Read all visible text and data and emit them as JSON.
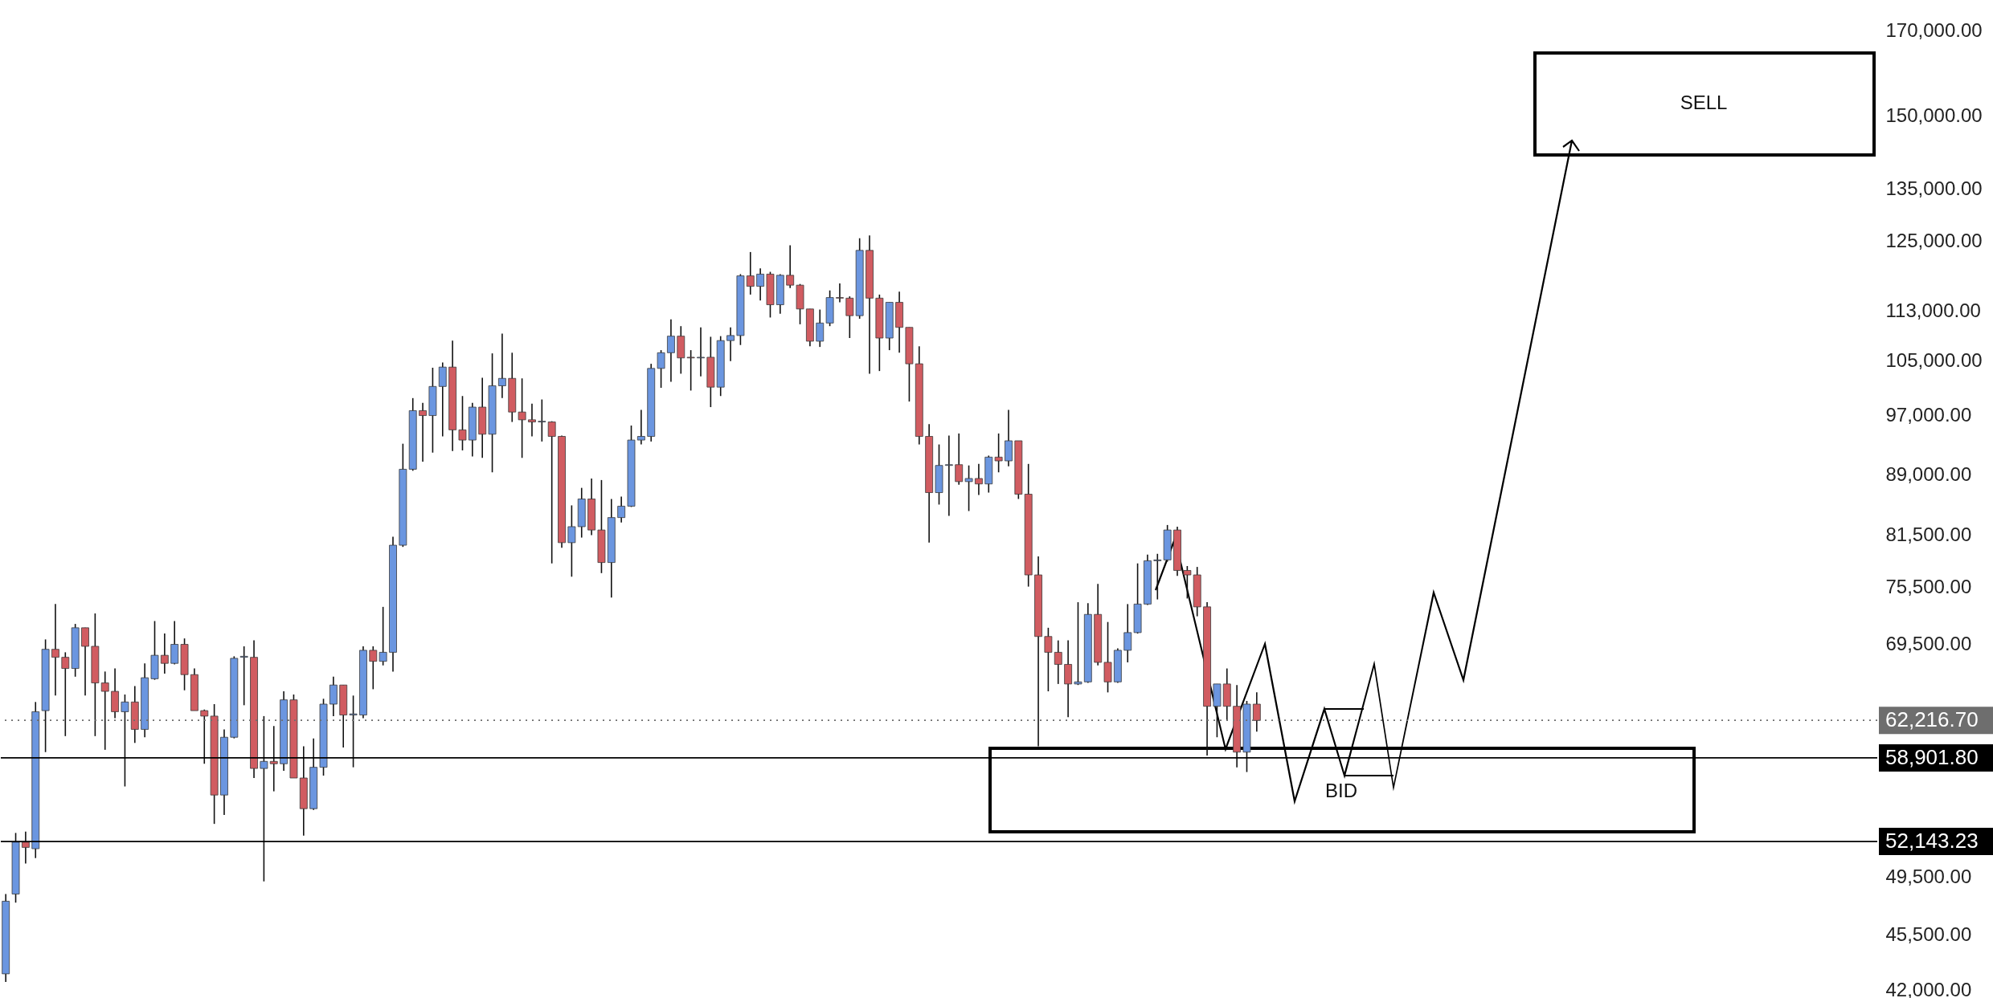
{
  "chart_data": {
    "type": "candlestick",
    "categories": [
      null,
      null,
      null,
      null,
      null,
      null,
      null,
      null,
      null,
      null,
      null,
      null,
      null,
      null,
      null,
      null,
      null,
      null,
      null,
      null,
      null,
      null,
      null,
      null,
      null,
      null,
      null,
      null,
      null,
      null,
      null,
      null,
      null,
      null,
      null,
      null,
      null,
      null,
      null,
      null,
      null,
      null,
      null,
      null,
      null,
      null,
      null,
      null,
      null,
      null,
      null,
      null,
      null,
      null,
      null,
      null,
      null,
      null,
      null,
      null,
      null,
      null,
      null,
      null,
      null,
      null,
      null,
      null,
      null,
      null,
      null,
      null,
      null,
      null,
      null,
      null,
      null,
      null,
      null,
      null,
      null,
      null,
      null,
      null,
      null,
      null,
      null,
      null,
      null,
      null,
      null,
      null,
      null,
      null,
      null,
      null,
      null,
      null,
      null,
      null,
      null,
      null,
      null,
      null,
      null,
      null,
      null,
      null,
      null,
      null,
      null,
      null,
      null,
      null,
      null,
      null,
      null,
      null,
      null,
      null,
      null,
      null,
      null,
      null,
      null,
      null,
      null,
      null,
      null,
      null,
      null,
      null,
      null,
      null,
      null,
      null,
      null,
      null,
      null,
      null,
      null,
      null,
      null,
      null,
      null,
      null,
      null,
      null,
      null,
      null,
      null,
      null,
      null,
      null,
      null,
      null,
      null,
      null,
      null,
      null,
      null,
      null,
      null,
      null,
      null,
      null,
      null,
      null,
      null,
      null,
      null,
      null,
      null,
      null,
      null,
      null,
      null,
      null,
      null,
      null,
      null,
      null,
      null,
      null,
      null,
      null,
      null,
      null,
      null
    ],
    "ohlc": [
      [
        43000,
        48300,
        42500,
        47800
      ],
      [
        48300,
        52800,
        47700,
        52100
      ],
      [
        52100,
        52900,
        50500,
        51700
      ],
      [
        51600,
        63900,
        50900,
        63000
      ],
      [
        63100,
        70000,
        59400,
        69000
      ],
      [
        69000,
        73700,
        64500,
        68200
      ],
      [
        68200,
        68700,
        60800,
        67100
      ],
      [
        67100,
        71600,
        66300,
        71200
      ],
      [
        71200,
        71200,
        64500,
        69300
      ],
      [
        69300,
        72700,
        60800,
        65700
      ],
      [
        65700,
        66800,
        59600,
        64900
      ],
      [
        64900,
        67100,
        62400,
        63000
      ],
      [
        63000,
        64600,
        56500,
        63900
      ],
      [
        63900,
        65400,
        60200,
        61400
      ],
      [
        61400,
        67600,
        60700,
        66200
      ],
      [
        66100,
        71900,
        66000,
        68400
      ],
      [
        68400,
        70600,
        66600,
        67600
      ],
      [
        67600,
        71900,
        67500,
        69500
      ],
      [
        69500,
        70100,
        65000,
        66500
      ],
      [
        66500,
        67100,
        63100,
        63100
      ],
      [
        63100,
        63200,
        58400,
        62600
      ],
      [
        62600,
        63700,
        53500,
        55800
      ],
      [
        55800,
        61400,
        54200,
        60700
      ],
      [
        60700,
        68300,
        60600,
        68100
      ],
      [
        68200,
        69300,
        63600,
        68300
      ],
      [
        68200,
        69900,
        57200,
        58000
      ],
      [
        58000,
        62600,
        49200,
        58600
      ],
      [
        58600,
        61700,
        56100,
        58400
      ],
      [
        58400,
        64900,
        57800,
        64100
      ],
      [
        64100,
        64600,
        57200,
        57200
      ],
      [
        57200,
        59900,
        52600,
        54700
      ],
      [
        54700,
        60600,
        54600,
        58100
      ],
      [
        58100,
        64200,
        57400,
        63700
      ],
      [
        63700,
        66300,
        62600,
        65500
      ],
      [
        65500,
        65500,
        59800,
        62700
      ],
      [
        62700,
        64500,
        58100,
        62800
      ],
      [
        62700,
        69300,
        62400,
        68900
      ],
      [
        68900,
        69300,
        65100,
        67800
      ],
      [
        67800,
        73400,
        67400,
        68700
      ],
      [
        68700,
        81300,
        66800,
        80300
      ],
      [
        80300,
        93100,
        80100,
        89700
      ],
      [
        89700,
        99500,
        89500,
        97700
      ],
      [
        97700,
        98800,
        90700,
        97000
      ],
      [
        97000,
        104000,
        91900,
        101200
      ],
      [
        101200,
        104800,
        94100,
        104100
      ],
      [
        104100,
        108200,
        92100,
        95000
      ],
      [
        95000,
        99800,
        92200,
        93600
      ],
      [
        93600,
        98800,
        91400,
        98200
      ],
      [
        98200,
        102500,
        91200,
        94400
      ],
      [
        94400,
        106200,
        89300,
        101300
      ],
      [
        101300,
        109300,
        99500,
        102400
      ],
      [
        102400,
        106300,
        96100,
        97500
      ],
      [
        97500,
        102400,
        91200,
        96400
      ],
      [
        96400,
        98700,
        94100,
        96100
      ],
      [
        96100,
        99300,
        93400,
        96200
      ],
      [
        96100,
        96200,
        78200,
        94100
      ],
      [
        94100,
        94200,
        80000,
        80600
      ],
      [
        80600,
        85100,
        76700,
        82500
      ],
      [
        82500,
        87300,
        81200,
        85900
      ],
      [
        85900,
        88500,
        81500,
        82100
      ],
      [
        82100,
        88300,
        77100,
        78300
      ],
      [
        78300,
        85900,
        74400,
        83600
      ],
      [
        83600,
        86200,
        83000,
        85000
      ],
      [
        85000,
        95600,
        84900,
        93600
      ],
      [
        93600,
        97800,
        93000,
        94100
      ],
      [
        94100,
        104600,
        93400,
        103900
      ],
      [
        103900,
        106700,
        101000,
        106300
      ],
      [
        106300,
        111600,
        101900,
        108900
      ],
      [
        108900,
        110500,
        103100,
        105500
      ],
      [
        105600,
        106700,
        100600,
        105500
      ],
      [
        105500,
        110300,
        102700,
        105600
      ],
      [
        105600,
        108800,
        98200,
        101100
      ],
      [
        101100,
        108900,
        99800,
        108200
      ],
      [
        108200,
        110300,
        105000,
        109000
      ],
      [
        109000,
        119200,
        107500,
        118900
      ],
      [
        118900,
        123100,
        115700,
        117100
      ],
      [
        117100,
        120200,
        114700,
        119200
      ],
      [
        119200,
        119600,
        111900,
        114000
      ],
      [
        114000,
        119200,
        112500,
        119000
      ],
      [
        119000,
        124300,
        116800,
        117300
      ],
      [
        117300,
        117500,
        110800,
        113300
      ],
      [
        113300,
        113300,
        107300,
        108100
      ],
      [
        108100,
        113200,
        107200,
        111000
      ],
      [
        111000,
        116400,
        110500,
        115200
      ],
      [
        115200,
        117600,
        114400,
        115100
      ],
      [
        115100,
        115400,
        108600,
        112200
      ],
      [
        112200,
        125600,
        111700,
        123400
      ],
      [
        123400,
        126100,
        103100,
        115100
      ],
      [
        115100,
        115700,
        103500,
        108600
      ],
      [
        108600,
        114400,
        106700,
        114400
      ],
      [
        114400,
        116200,
        106300,
        110300
      ],
      [
        110300,
        110300,
        99000,
        104600
      ],
      [
        104600,
        107300,
        93000,
        94100
      ],
      [
        94100,
        95800,
        80600,
        86700
      ],
      [
        86700,
        93000,
        85200,
        90200
      ],
      [
        90200,
        94200,
        83800,
        90300
      ],
      [
        90300,
        94500,
        87700,
        88100
      ],
      [
        88100,
        90200,
        84400,
        88500
      ],
      [
        88500,
        90400,
        86400,
        87800
      ],
      [
        87800,
        91500,
        86700,
        91300
      ],
      [
        91300,
        94500,
        89300,
        90800
      ],
      [
        90800,
        97800,
        90100,
        93500
      ],
      [
        93500,
        93500,
        85900,
        86500
      ],
      [
        86500,
        90400,
        75600,
        76900
      ],
      [
        76900,
        79000,
        59900,
        70300
      ],
      [
        70300,
        71200,
        64900,
        68700
      ],
      [
        68700,
        69900,
        65600,
        67500
      ],
      [
        67500,
        69900,
        62500,
        65600
      ],
      [
        65600,
        73900,
        65500,
        65800
      ],
      [
        65800,
        73800,
        65700,
        72600
      ],
      [
        72600,
        75900,
        67400,
        67700
      ],
      [
        67700,
        71800,
        64800,
        65800
      ],
      [
        65800,
        69100,
        65700,
        68900
      ],
      [
        68900,
        73700,
        67700,
        70700
      ],
      [
        70700,
        78200,
        70600,
        73700
      ],
      [
        73700,
        79200,
        73600,
        78500
      ],
      [
        78500,
        79300,
        74200,
        78600
      ],
      [
        78600,
        82700,
        78400,
        82100
      ],
      [
        82100,
        82500,
        76800,
        77400
      ],
      [
        77400,
        77900,
        74300,
        76900
      ],
      [
        76900,
        77800,
        72400,
        73400
      ],
      [
        73400,
        73900,
        59100,
        63500
      ],
      [
        63500,
        65600,
        60700,
        65600
      ],
      [
        65600,
        67100,
        62200,
        63500
      ],
      [
        63500,
        65500,
        58100,
        59400
      ],
      [
        59400,
        64000,
        57700,
        63700
      ],
      [
        63700,
        64800,
        61200,
        62200
      ],
      null,
      null,
      null,
      null,
      null,
      null,
      null,
      null,
      null,
      null,
      null,
      null,
      null,
      null,
      null,
      null,
      null,
      null,
      null,
      null,
      null,
      null,
      null,
      null,
      null,
      null,
      null,
      null,
      null,
      null,
      null,
      null,
      null,
      null,
      null,
      null,
      null,
      null,
      null,
      null,
      null,
      null,
      null,
      null,
      null,
      null,
      null,
      null,
      null,
      null,
      null,
      null,
      null,
      null,
      null,
      null,
      null,
      null,
      null,
      null,
      null,
      null
    ],
    "colors": [
      "#6b96e0",
      "#6b96e0",
      "#d15c61",
      "#6b96e0",
      "#6b96e0",
      "#d15c61",
      "#d15c61",
      "#6b96e0",
      "#d15c61",
      "#d15c61",
      "#d15c61",
      "#d15c61",
      "#6b96e0",
      "#d15c61",
      "#6b96e0",
      "#6b96e0",
      "#d15c61",
      "#6b96e0",
      "#d15c61",
      "#d15c61",
      "#d15c61",
      "#d15c61",
      "#6b96e0",
      "#6b96e0",
      "#6b96e0",
      "#d15c61",
      "#6b96e0",
      "#d15c61",
      "#6b96e0",
      "#d15c61",
      "#d15c61",
      "#6b96e0",
      "#6b96e0",
      "#6b96e0",
      "#d15c61",
      "#6b96e0",
      "#6b96e0",
      "#d15c61",
      "#6b96e0",
      "#6b96e0",
      "#6b96e0",
      "#6b96e0",
      "#d15c61",
      "#6b96e0",
      "#6b96e0",
      "#d15c61",
      "#d15c61",
      "#6b96e0",
      "#d15c61",
      "#6b96e0",
      "#6b96e0",
      "#d15c61",
      "#d15c61",
      "#d15c61",
      "#6b96e0",
      "#d15c61",
      "#d15c61",
      "#6b96e0",
      "#6b96e0",
      "#d15c61",
      "#d15c61",
      "#6b96e0",
      "#6b96e0",
      "#6b96e0",
      "#6b96e0",
      "#6b96e0",
      "#6b96e0",
      "#6b96e0",
      "#d15c61",
      "#d15c61",
      "#6b96e0",
      "#d15c61",
      "#6b96e0",
      "#6b96e0",
      "#6b96e0",
      "#d15c61",
      "#6b96e0",
      "#d15c61",
      "#6b96e0",
      "#d15c61",
      "#d15c61",
      "#d15c61",
      "#6b96e0",
      "#6b96e0",
      "#d15c61",
      "#d15c61",
      "#6b96e0",
      "#d15c61",
      "#d15c61",
      "#6b96e0",
      "#d15c61",
      "#d15c61",
      "#d15c61",
      "#d15c61",
      "#6b96e0",
      "#6b96e0",
      "#d15c61",
      "#6b96e0",
      "#d15c61",
      "#6b96e0",
      "#d15c61",
      "#6b96e0",
      "#d15c61",
      "#d15c61",
      "#d15c61",
      "#d15c61",
      "#d15c61",
      "#d15c61",
      "#6b96e0",
      "#6b96e0",
      "#d15c61",
      "#d15c61",
      "#6b96e0",
      "#6b96e0",
      "#6b96e0",
      "#6b96e0",
      "#6b96e0",
      "#6b96e0",
      "#d15c61",
      "#d15c61",
      "#d15c61",
      "#d15c61",
      "#6b96e0",
      "#d15c61",
      "#d15c61",
      "#6b96e0",
      "#d15c61",
      null,
      null,
      null,
      null,
      null,
      null,
      null,
      null,
      null,
      null,
      null,
      null,
      null,
      null,
      null,
      null,
      null,
      null,
      null,
      null,
      null,
      null,
      null,
      null,
      null,
      null,
      null,
      null,
      null,
      null,
      null,
      null,
      null,
      null,
      null,
      null,
      null,
      null,
      null,
      null,
      null,
      null,
      null,
      null,
      null,
      null,
      null,
      null,
      null,
      null,
      null,
      null,
      null,
      null,
      null,
      null,
      null,
      null,
      null,
      null,
      null,
      null
    ],
    "ylim": [
      42000,
      170000
    ],
    "log": true,
    "tick_labels": "y",
    "yticks": [
      {
        "value": 170000,
        "label": "170,000.00"
      },
      {
        "value": 150000,
        "label": "150,000.00"
      },
      {
        "value": 135000,
        "label": "135,000.00"
      },
      {
        "value": 125000,
        "label": "125,000.00"
      },
      {
        "value": 113000,
        "label": "113,000.00"
      },
      {
        "value": 105000,
        "label": "105,000.00"
      },
      {
        "value": 97000,
        "label": "97,000.00"
      },
      {
        "value": 89000,
        "label": "89,000.00"
      },
      {
        "value": 81500,
        "label": "81,500.00"
      },
      {
        "value": 75500,
        "label": "75,500.00"
      },
      {
        "value": 69500,
        "label": "69,500.00"
      },
      {
        "value": 49500,
        "label": "49,500.00"
      },
      {
        "value": 45500,
        "label": "45,500.00"
      },
      {
        "value": 42000,
        "label": "42,000.00"
      }
    ],
    "ref_lines": [
      {
        "axis": "y",
        "value": 62216.7,
        "label": "62,216.70",
        "color": "#6e6e6e",
        "line_style": "dotted"
      },
      {
        "axis": "y",
        "value": 58901.8,
        "label": "58,901.80",
        "color": "#000000"
      },
      {
        "axis": "y",
        "value": 52143.23,
        "label": "52,143.23",
        "color": "#000000"
      }
    ],
    "annotations": [
      "BID",
      "SELL"
    ]
  }
}
